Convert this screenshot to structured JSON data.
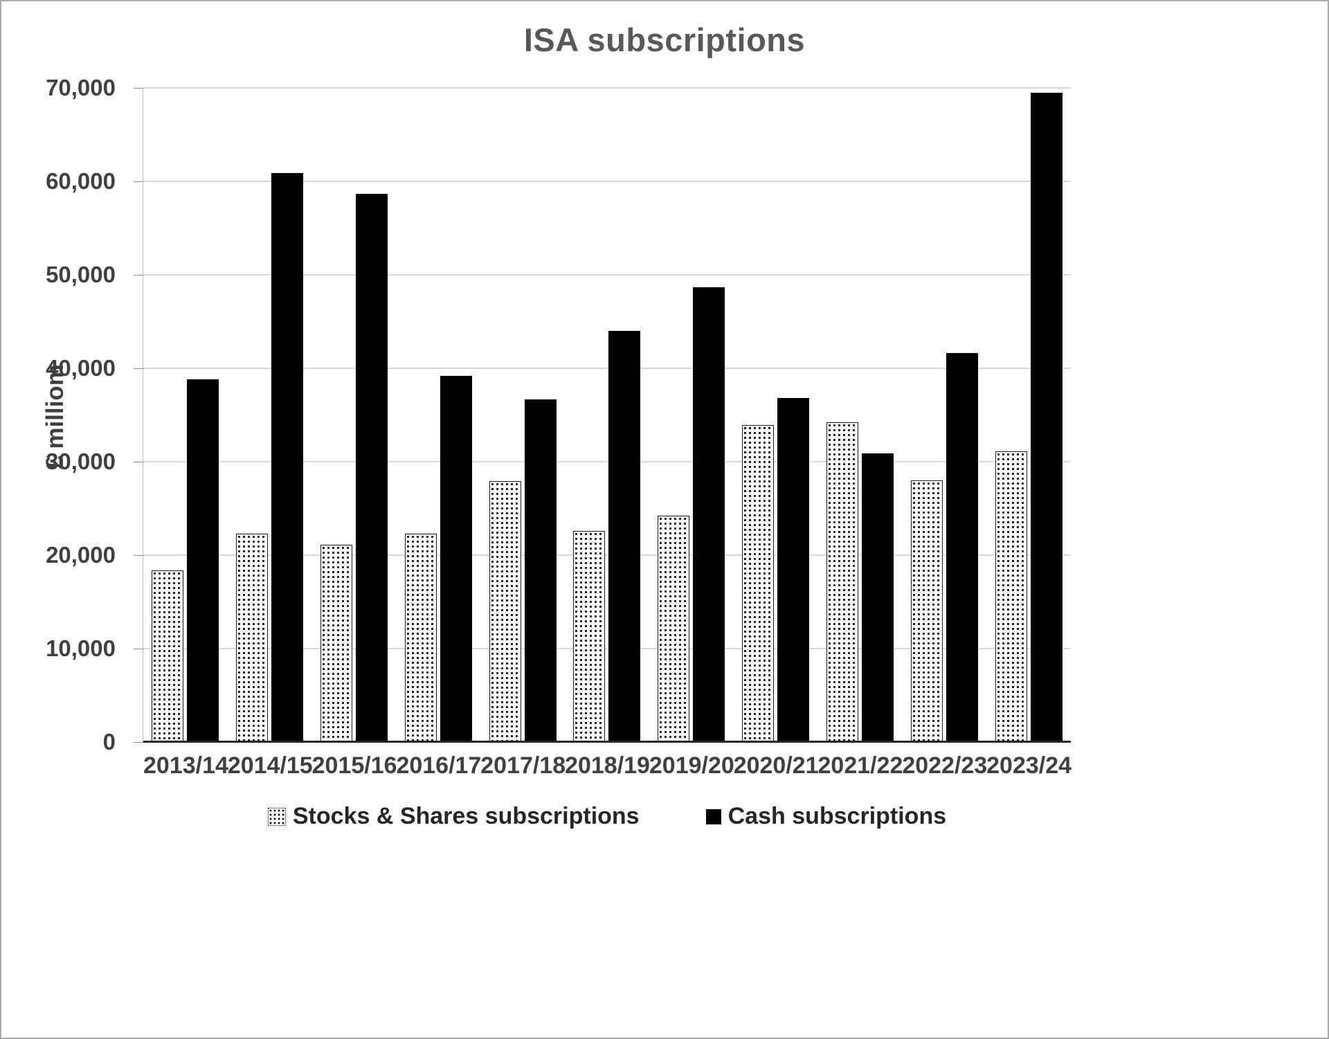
{
  "chart_data": {
    "type": "bar",
    "title": "ISA subscriptions",
    "xlabel": "",
    "ylabel": "£ milliom",
    "ylim": [
      0,
      70000
    ],
    "ytick_step": 10000,
    "yticks": [
      "0",
      "10,000",
      "20,000",
      "30,000",
      "40,000",
      "50,000",
      "60,000",
      "70,000"
    ],
    "grid": "horizontal",
    "legend_position": "bottom",
    "categories": [
      "2013/14",
      "2014/15",
      "2015/16",
      "2016/17",
      "2017/18",
      "2018/19",
      "2019/20",
      "2020/21",
      "2021/22",
      "2022/23",
      "2023/24"
    ],
    "series": [
      {
        "name": "Stocks & Shares subscriptions",
        "style": "dotted-pattern",
        "values": [
          18400,
          22300,
          21100,
          22300,
          27900,
          22600,
          24200,
          33900,
          34200,
          28000,
          31100
        ]
      },
      {
        "name": "Cash subscriptions",
        "style": "solid-black",
        "values": [
          38800,
          60900,
          58700,
          39200,
          36700,
          44000,
          48700,
          36800,
          30900,
          41600,
          69500
        ]
      }
    ]
  },
  "colors": {
    "cash_bar": "#000000",
    "stocks_dot": "#000000",
    "stocks_bg": "#ffffff",
    "gridline": "#d9d9d9",
    "axis_line": "#bfbfbf",
    "zero_axis": "#262626",
    "label_text": "#404040",
    "title_text": "#595959",
    "legend_text": "#262626",
    "frame_border": "#ababab"
  }
}
